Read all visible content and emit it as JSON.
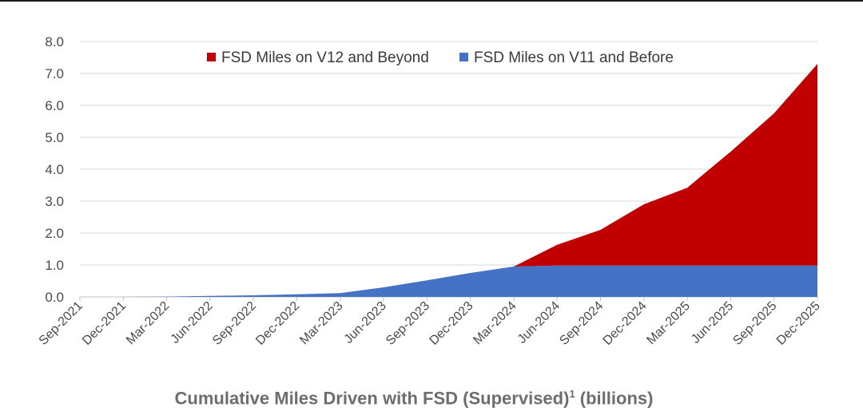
{
  "chart_data": {
    "type": "area",
    "title": "Cumulative Miles Driven with FSD (Supervised)",
    "title_superscript": "1",
    "title_suffix": "(billions)",
    "xlabel": "",
    "ylabel": "",
    "ylim": [
      0,
      8
    ],
    "yticks": [
      "0.0",
      "1.0",
      "2.0",
      "3.0",
      "4.0",
      "5.0",
      "6.0",
      "7.0",
      "8.0"
    ],
    "x": [
      "Sep-2021",
      "Dec-2021",
      "Mar-2022",
      "Jun-2022",
      "Sep-2022",
      "Dec-2022",
      "Mar-2023",
      "Jun-2023",
      "Sep-2023",
      "Dec-2023",
      "Mar-2024",
      "Jun-2024",
      "Sep-2024",
      "Dec-2024",
      "Mar-2025",
      "Jun-2025",
      "Sep-2025",
      "Dec-2025"
    ],
    "stacked": true,
    "grid": "horizontal",
    "legend_position": "top",
    "series": [
      {
        "name": "FSD Miles on V11 and Before",
        "color": "#4472C4",
        "values": [
          0.0,
          0.0,
          0.01,
          0.03,
          0.05,
          0.08,
          0.12,
          0.3,
          0.52,
          0.75,
          0.95,
          0.98,
          0.98,
          0.98,
          0.98,
          0.98,
          0.98,
          0.98
        ]
      },
      {
        "name": "FSD Miles on V12 and Beyond",
        "color": "#C00000",
        "values": [
          0,
          0,
          0,
          0,
          0,
          0,
          0,
          0,
          0,
          0,
          0,
          0.65,
          1.12,
          1.92,
          2.44,
          3.57,
          4.77,
          6.32
        ]
      }
    ],
    "legend_order": [
      "FSD Miles on V12 and Beyond",
      "FSD Miles on V11 and Before"
    ]
  }
}
